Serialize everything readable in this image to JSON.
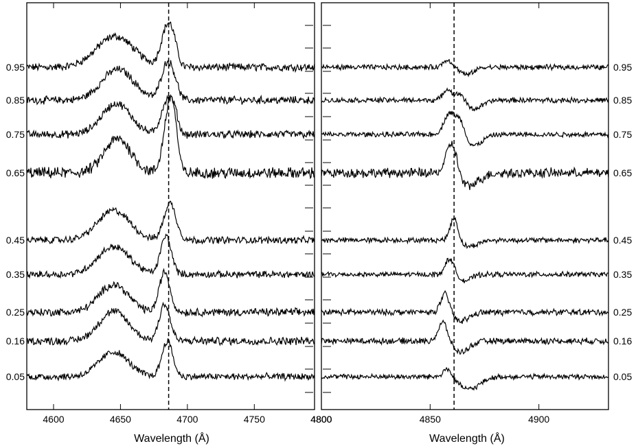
{
  "chart_data": [
    {
      "type": "line",
      "panel": "left",
      "xlabel": "Wavelength (Å)",
      "xlim": [
        4580,
        4795
      ],
      "xticks": [
        "4600",
        "4650",
        "4700",
        "4750",
        "4800"
      ],
      "xtick_values": [
        4600,
        4650,
        4700,
        4750,
        4800
      ],
      "reference_line": 4686,
      "phase_label_side": "left",
      "series": [
        {
          "name": "0.95",
          "features": [
            [
              4646,
              50,
              14
            ],
            [
              4685,
              65,
              4.5
            ],
            [
              4690,
              18,
              3
            ]
          ],
          "noise": 9
        },
        {
          "name": "0.85",
          "features": [
            [
              4648,
              50,
              12
            ],
            [
              4685,
              60,
              4.5
            ],
            [
              4691,
              14,
              3
            ]
          ],
          "noise": 9
        },
        {
          "name": "0.75",
          "features": [
            [
              4647,
              50,
              11
            ],
            [
              4684,
              50,
              4
            ],
            [
              4690,
              35,
              3
            ]
          ],
          "noise": 9
        },
        {
          "name": "0.65",
          "features": [
            [
              4648,
              55,
              10
            ],
            [
              4686,
              95,
              4
            ],
            [
              4690,
              50,
              3
            ]
          ],
          "noise": 13
        },
        {
          "name": "0.45",
          "features": [
            [
              4645,
              48,
              12
            ],
            [
              4687,
              60,
              4.5
            ]
          ],
          "noise": 8
        },
        {
          "name": "0.35",
          "features": [
            [
              4645,
              45,
              12
            ],
            [
              4684,
              62,
              4
            ]
          ],
          "noise": 8
        },
        {
          "name": "0.25",
          "features": [
            [
              4645,
              45,
              11
            ],
            [
              4683,
              65,
              4
            ]
          ],
          "noise": 9
        },
        {
          "name": "0.16",
          "features": [
            [
              4645,
              48,
              11
            ],
            [
              4683,
              60,
              4
            ]
          ],
          "noise": 9
        },
        {
          "name": "0.05",
          "features": [
            [
              4645,
              40,
              11
            ],
            [
              4685,
              58,
              4
            ]
          ],
          "noise": 8
        }
      ]
    },
    {
      "type": "line",
      "panel": "right",
      "xlabel": "Wavelength (Å)",
      "xlim": [
        4800,
        4932
      ],
      "xticks": [
        "4800",
        "4850",
        "4900"
      ],
      "xtick_values": [
        4800,
        4850,
        4900
      ],
      "reference_line": 4861,
      "phase_label_side": "right",
      "series": [
        {
          "name": "0.95",
          "features": [
            [
              4858,
              12,
              2
            ],
            [
              4867,
              -12,
              3
            ]
          ],
          "noise": 6
        },
        {
          "name": "0.85",
          "features": [
            [
              4858,
              18,
              2
            ],
            [
              4864,
              14,
              2
            ],
            [
              4870,
              -14,
              4
            ]
          ],
          "noise": 6
        },
        {
          "name": "0.75",
          "features": [
            [
              4859,
              35,
              2.5
            ],
            [
              4864,
              25,
              2
            ],
            [
              4870,
              -18,
              4
            ]
          ],
          "noise": 6
        },
        {
          "name": "0.65",
          "features": [
            [
              4860,
              55,
              2.5
            ],
            [
              4867,
              -22,
              5
            ]
          ],
          "noise": 11
        },
        {
          "name": "0.45",
          "features": [
            [
              4861,
              38,
              1.8
            ],
            [
              4868,
              -10,
              4
            ]
          ],
          "noise": 6
        },
        {
          "name": "0.35",
          "features": [
            [
              4859,
              26,
              2
            ],
            [
              4866,
              -10,
              3
            ]
          ],
          "noise": 6
        },
        {
          "name": "0.25",
          "features": [
            [
              4857,
              32,
              2
            ],
            [
              4864,
              -14,
              4
            ]
          ],
          "noise": 7
        },
        {
          "name": "0.16",
          "features": [
            [
              4856,
              32,
              2.2
            ],
            [
              4864,
              -18,
              4
            ]
          ],
          "noise": 7
        },
        {
          "name": "0.05",
          "features": [
            [
              4858,
              15,
              2
            ],
            [
              4868,
              -20,
              5
            ]
          ],
          "noise": 6
        }
      ]
    }
  ]
}
